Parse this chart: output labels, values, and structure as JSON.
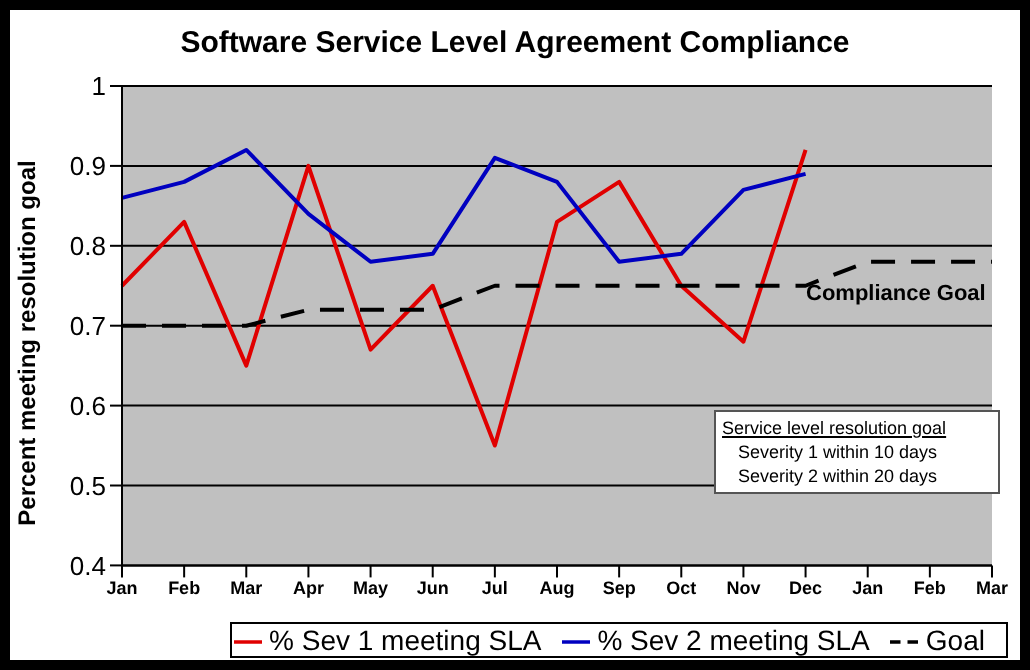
{
  "chart_data": {
    "type": "line",
    "title": "Software Service Level Agreement Compliance",
    "ylabel": "Percent meeting resolution goal",
    "categories": [
      "Jan",
      "Feb",
      "Mar",
      "Apr",
      "May",
      "Jun",
      "Jul",
      "Aug",
      "Sep",
      "Oct",
      "Nov",
      "Dec",
      "Jan",
      "Feb",
      "Mar"
    ],
    "series": [
      {
        "name": "% Sev 1 meeting SLA",
        "color": "#e00000",
        "values": [
          0.75,
          0.83,
          0.65,
          0.9,
          0.67,
          0.75,
          0.55,
          0.83,
          0.88,
          0.75,
          0.68,
          0.92,
          null,
          null,
          null
        ]
      },
      {
        "name": "% Sev 2 meeting SLA",
        "color": "#0000c0",
        "values": [
          0.86,
          0.88,
          0.92,
          0.84,
          0.78,
          0.79,
          0.91,
          0.88,
          0.78,
          0.79,
          0.87,
          0.89,
          null,
          null,
          null
        ]
      },
      {
        "name": "Goal",
        "color": "#000000",
        "line_style": "dashed",
        "values": [
          0.7,
          0.7,
          0.7,
          0.72,
          0.72,
          0.72,
          0.75,
          0.75,
          0.75,
          0.75,
          0.75,
          0.75,
          0.78,
          0.78,
          0.78
        ]
      }
    ],
    "ylim": [
      0.4,
      1
    ],
    "yticks": [
      0.4,
      0.5,
      0.6,
      0.7,
      0.8,
      0.9,
      1
    ],
    "grid": "y",
    "legend": "bottom",
    "marker": "none",
    "line_style": "solid",
    "annotations": [
      "Compliance Goal",
      "Service level resolution goal",
      "Severity 1 within 10 days",
      "Severity 2 within 20 days"
    ]
  }
}
